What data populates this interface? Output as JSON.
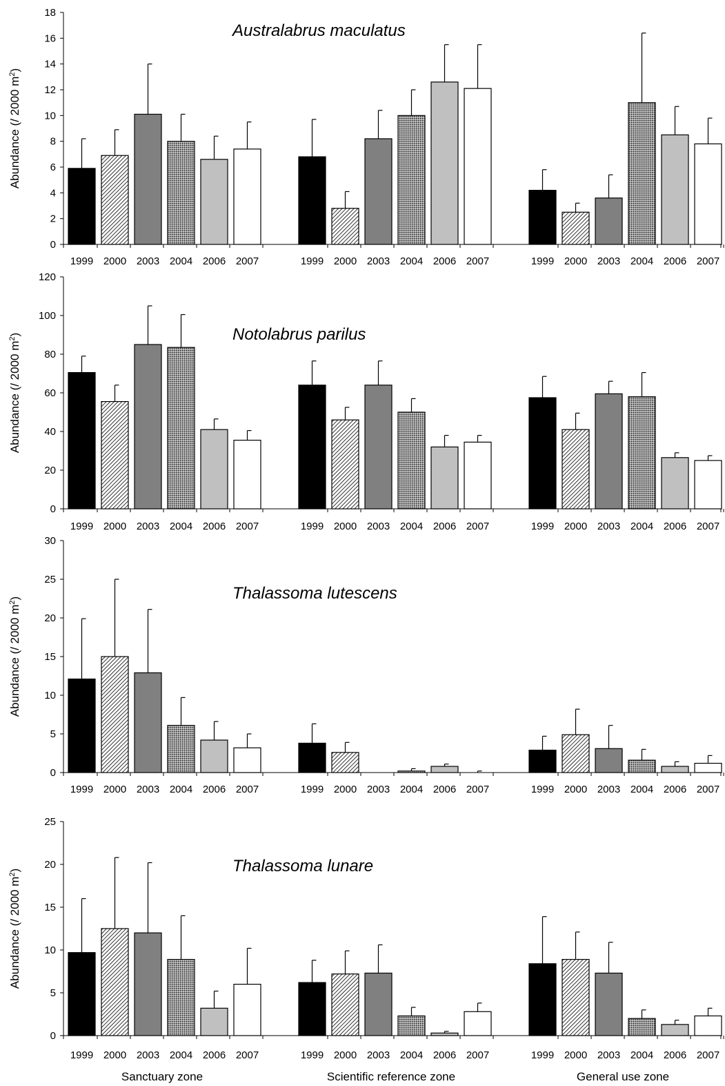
{
  "colors": {
    "1999": "#000000",
    "2000": "hatch-diagonal",
    "2003": "#808080",
    "2004": "hatch-crosshatch",
    "2006": "#c0c0c0",
    "2007": "#ffffff"
  },
  "zone_labels": [
    "Sanctuary zone",
    "Scientific reference zone",
    "General use zone"
  ],
  "chart_data": [
    {
      "type": "bar",
      "title": "Australabrus maculatus",
      "ylabel": "Abundance (/ 2000 m²)",
      "ylim": [
        0,
        18
      ],
      "yticks": [
        "0",
        "2",
        "4",
        "6",
        "8",
        "10",
        "12",
        "14",
        "16",
        "18"
      ],
      "zones": [
        "Sanctuary zone",
        "Scientific reference zone",
        "General use zone"
      ],
      "categories": [
        "1999",
        "2000",
        "2003",
        "2004",
        "2006",
        "2007"
      ],
      "series": [
        {
          "values": [
            5.9,
            6.9,
            10.1,
            8.0,
            6.6,
            7.4
          ],
          "errors": [
            2.3,
            2.0,
            3.9,
            2.1,
            1.8,
            2.1
          ]
        },
        {
          "values": [
            6.8,
            2.8,
            8.2,
            10.0,
            12.6,
            12.1
          ],
          "errors": [
            2.9,
            1.3,
            2.2,
            2.0,
            2.9,
            3.4
          ]
        },
        {
          "values": [
            4.2,
            2.5,
            3.6,
            11.0,
            8.5,
            7.8
          ],
          "errors": [
            1.6,
            0.7,
            1.8,
            5.4,
            2.2,
            2.0
          ]
        }
      ]
    },
    {
      "type": "bar",
      "title": "Notolabrus parilus",
      "ylabel": "Abundance (/ 2000 m²)",
      "ylim": [
        0,
        120
      ],
      "yticks": [
        "0",
        "20",
        "40",
        "60",
        "80",
        "100",
        "120"
      ],
      "zones": [
        "Sanctuary zone",
        "Scientific reference zone",
        "General use zone"
      ],
      "categories": [
        "1999",
        "2000",
        "2003",
        "2004",
        "2006",
        "2007"
      ],
      "series": [
        {
          "values": [
            70.5,
            55.5,
            85.0,
            83.5,
            41.0,
            35.5
          ],
          "errors": [
            8.5,
            8.5,
            20.0,
            17.0,
            5.5,
            5.0
          ]
        },
        {
          "values": [
            64.0,
            46.0,
            64.0,
            50.0,
            32.0,
            34.5
          ],
          "errors": [
            12.5,
            6.5,
            12.5,
            7.0,
            6.0,
            3.5
          ]
        },
        {
          "values": [
            57.5,
            41.0,
            59.5,
            58.0,
            26.5,
            25.0
          ],
          "errors": [
            11.0,
            8.5,
            6.5,
            12.5,
            2.5,
            2.5
          ]
        }
      ]
    },
    {
      "type": "bar",
      "title": "Thalassoma lutescens",
      "ylabel": "Abundance (/ 2000 m²)",
      "ylim": [
        0,
        30
      ],
      "yticks": [
        "0",
        "5",
        "10",
        "15",
        "20",
        "25",
        "30"
      ],
      "zones": [
        "Sanctuary zone",
        "Scientific reference zone",
        "General use zone"
      ],
      "categories": [
        "1999",
        "2000",
        "2003",
        "2004",
        "2006",
        "2007"
      ],
      "series": [
        {
          "values": [
            12.1,
            15.0,
            12.9,
            6.1,
            4.2,
            3.2
          ],
          "errors": [
            7.8,
            10.0,
            8.2,
            3.6,
            2.4,
            1.8
          ]
        },
        {
          "values": [
            3.8,
            2.6,
            0,
            0.2,
            0.8,
            0
          ],
          "errors": [
            2.5,
            1.3,
            0,
            0.3,
            0.3,
            0.2
          ]
        },
        {
          "values": [
            2.9,
            4.9,
            3.1,
            1.6,
            0.8,
            1.2
          ],
          "errors": [
            1.8,
            3.3,
            3.0,
            1.4,
            0.6,
            1.0
          ]
        }
      ]
    },
    {
      "type": "bar",
      "title": "Thalassoma lunare",
      "ylabel": "Abundance (/ 2000 m²)",
      "ylim": [
        0,
        25
      ],
      "yticks": [
        "0",
        "5",
        "10",
        "15",
        "20",
        "25"
      ],
      "zones": [
        "Sanctuary zone",
        "Scientific reference zone",
        "General use zone"
      ],
      "categories": [
        "1999",
        "2000",
        "2003",
        "2004",
        "2006",
        "2007"
      ],
      "series": [
        {
          "values": [
            9.7,
            12.5,
            12.0,
            8.9,
            3.2,
            6.0
          ],
          "errors": [
            6.3,
            8.3,
            8.2,
            5.1,
            2.0,
            4.2
          ]
        },
        {
          "values": [
            6.2,
            7.2,
            7.3,
            2.3,
            0.3,
            2.8
          ],
          "errors": [
            2.6,
            2.7,
            3.3,
            1.0,
            0.2,
            1.0
          ]
        },
        {
          "values": [
            8.4,
            8.9,
            7.3,
            2.0,
            1.3,
            2.3
          ],
          "errors": [
            5.5,
            3.2,
            3.6,
            1.0,
            0.5,
            0.9
          ]
        }
      ]
    }
  ]
}
